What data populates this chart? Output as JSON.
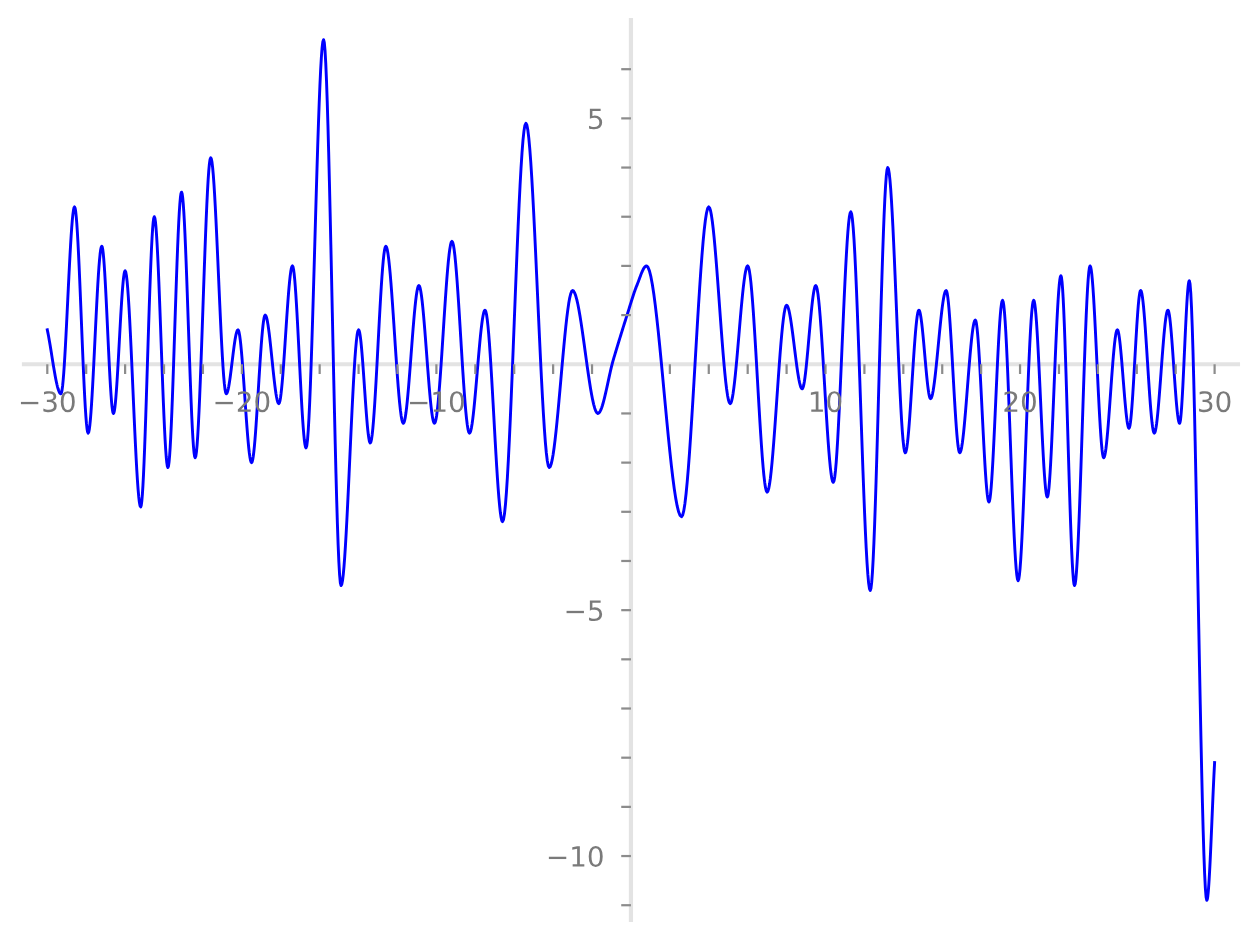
{
  "chart_data": {
    "type": "line",
    "color": "#0000ff",
    "line_style": "solid",
    "x": [
      -30,
      -29.3,
      -28.6,
      -27.9,
      -27.2,
      -26.6,
      -26.0,
      -25.2,
      -24.5,
      -23.8,
      -23.1,
      -22.4,
      -21.6,
      -20.8,
      -20.2,
      -19.5,
      -18.8,
      -18.1,
      -17.4,
      -16.7,
      -15.8,
      -14.9,
      -14.0,
      -13.4,
      -12.6,
      -11.7,
      -10.9,
      -10.1,
      -9.2,
      -8.3,
      -7.5,
      -6.6,
      -5.4,
      -4.2,
      -3.0,
      -1.7,
      -0.9,
      -0.2,
      0.3,
      0.8,
      2.6,
      4.0,
      5.1,
      6.0,
      7.0,
      8.0,
      8.8,
      9.5,
      10.4,
      11.3,
      12.3,
      13.2,
      14.1,
      14.8,
      15.4,
      16.2,
      16.9,
      17.7,
      18.4,
      19.1,
      19.9,
      20.7,
      21.4,
      22.1,
      22.8,
      23.6,
      24.3,
      25.0,
      25.6,
      26.2,
      26.9,
      27.6,
      28.2,
      28.7,
      29.6,
      30
    ],
    "values": [
      0.7,
      -0.6,
      3.2,
      -1.4,
      2.4,
      -1.0,
      1.9,
      -2.9,
      3.0,
      -2.1,
      3.5,
      -1.9,
      4.2,
      -0.6,
      0.7,
      -2.0,
      1.0,
      -0.8,
      2.0,
      -1.7,
      6.6,
      -4.5,
      0.7,
      -1.6,
      2.4,
      -1.2,
      1.6,
      -1.2,
      2.5,
      -1.4,
      1.1,
      -3.2,
      4.9,
      -2.1,
      1.5,
      -1.0,
      0.1,
      1.0,
      1.6,
      2.0,
      -3.1,
      3.2,
      -0.8,
      2.0,
      -2.6,
      1.2,
      -0.5,
      1.6,
      -2.4,
      3.1,
      -4.6,
      4.0,
      -1.8,
      1.1,
      -0.7,
      1.5,
      -1.8,
      0.9,
      -2.8,
      1.3,
      -4.4,
      1.3,
      -2.7,
      1.8,
      -4.5,
      2.0,
      -1.9,
      0.7,
      -1.3,
      1.5,
      -1.4,
      1.1,
      -1.2,
      1.7,
      -10.9,
      -8.1
    ],
    "xlim": [
      -31.2,
      31.2
    ],
    "ylim": [
      -11.3,
      7.0
    ],
    "xticks": [
      {
        "value": -30,
        "label": "−30"
      },
      {
        "value": -28,
        "label": null
      },
      {
        "value": -26,
        "label": null
      },
      {
        "value": -24,
        "label": null
      },
      {
        "value": -22,
        "label": null
      },
      {
        "value": -20,
        "label": "−20"
      },
      {
        "value": -18,
        "label": null
      },
      {
        "value": -16,
        "label": null
      },
      {
        "value": -14,
        "label": null
      },
      {
        "value": -12,
        "label": null
      },
      {
        "value": -10,
        "label": "−10"
      },
      {
        "value": -8,
        "label": null
      },
      {
        "value": -6,
        "label": null
      },
      {
        "value": -4,
        "label": null
      },
      {
        "value": -2,
        "label": null
      },
      {
        "value": 2,
        "label": null
      },
      {
        "value": 4,
        "label": null
      },
      {
        "value": 6,
        "label": null
      },
      {
        "value": 8,
        "label": null
      },
      10,
      {
        "value": 12,
        "label": null
      },
      {
        "value": 14,
        "label": null
      },
      {
        "value": 16,
        "label": null
      },
      {
        "value": 18,
        "label": null
      },
      20,
      {
        "value": 22,
        "label": null
      },
      {
        "value": 24,
        "label": null
      },
      {
        "value": 26,
        "label": null
      },
      {
        "value": 28,
        "label": null
      },
      30
    ],
    "yticks": [
      {
        "value": -11,
        "label": null
      },
      {
        "value": -10,
        "label": "−10"
      },
      {
        "value": -9,
        "label": null
      },
      {
        "value": -8,
        "label": null
      },
      {
        "value": -7,
        "label": null
      },
      {
        "value": -6,
        "label": null
      },
      {
        "value": -5,
        "label": "−5"
      },
      {
        "value": -4,
        "label": null
      },
      {
        "value": -3,
        "label": null
      },
      {
        "value": -2,
        "label": null
      },
      {
        "value": -1,
        "label": null
      },
      {
        "value": 1,
        "label": null
      },
      {
        "value": 2,
        "label": null
      },
      {
        "value": 3,
        "label": null
      },
      {
        "value": 4,
        "label": null
      },
      5,
      {
        "value": 6,
        "label": null
      }
    ]
  }
}
